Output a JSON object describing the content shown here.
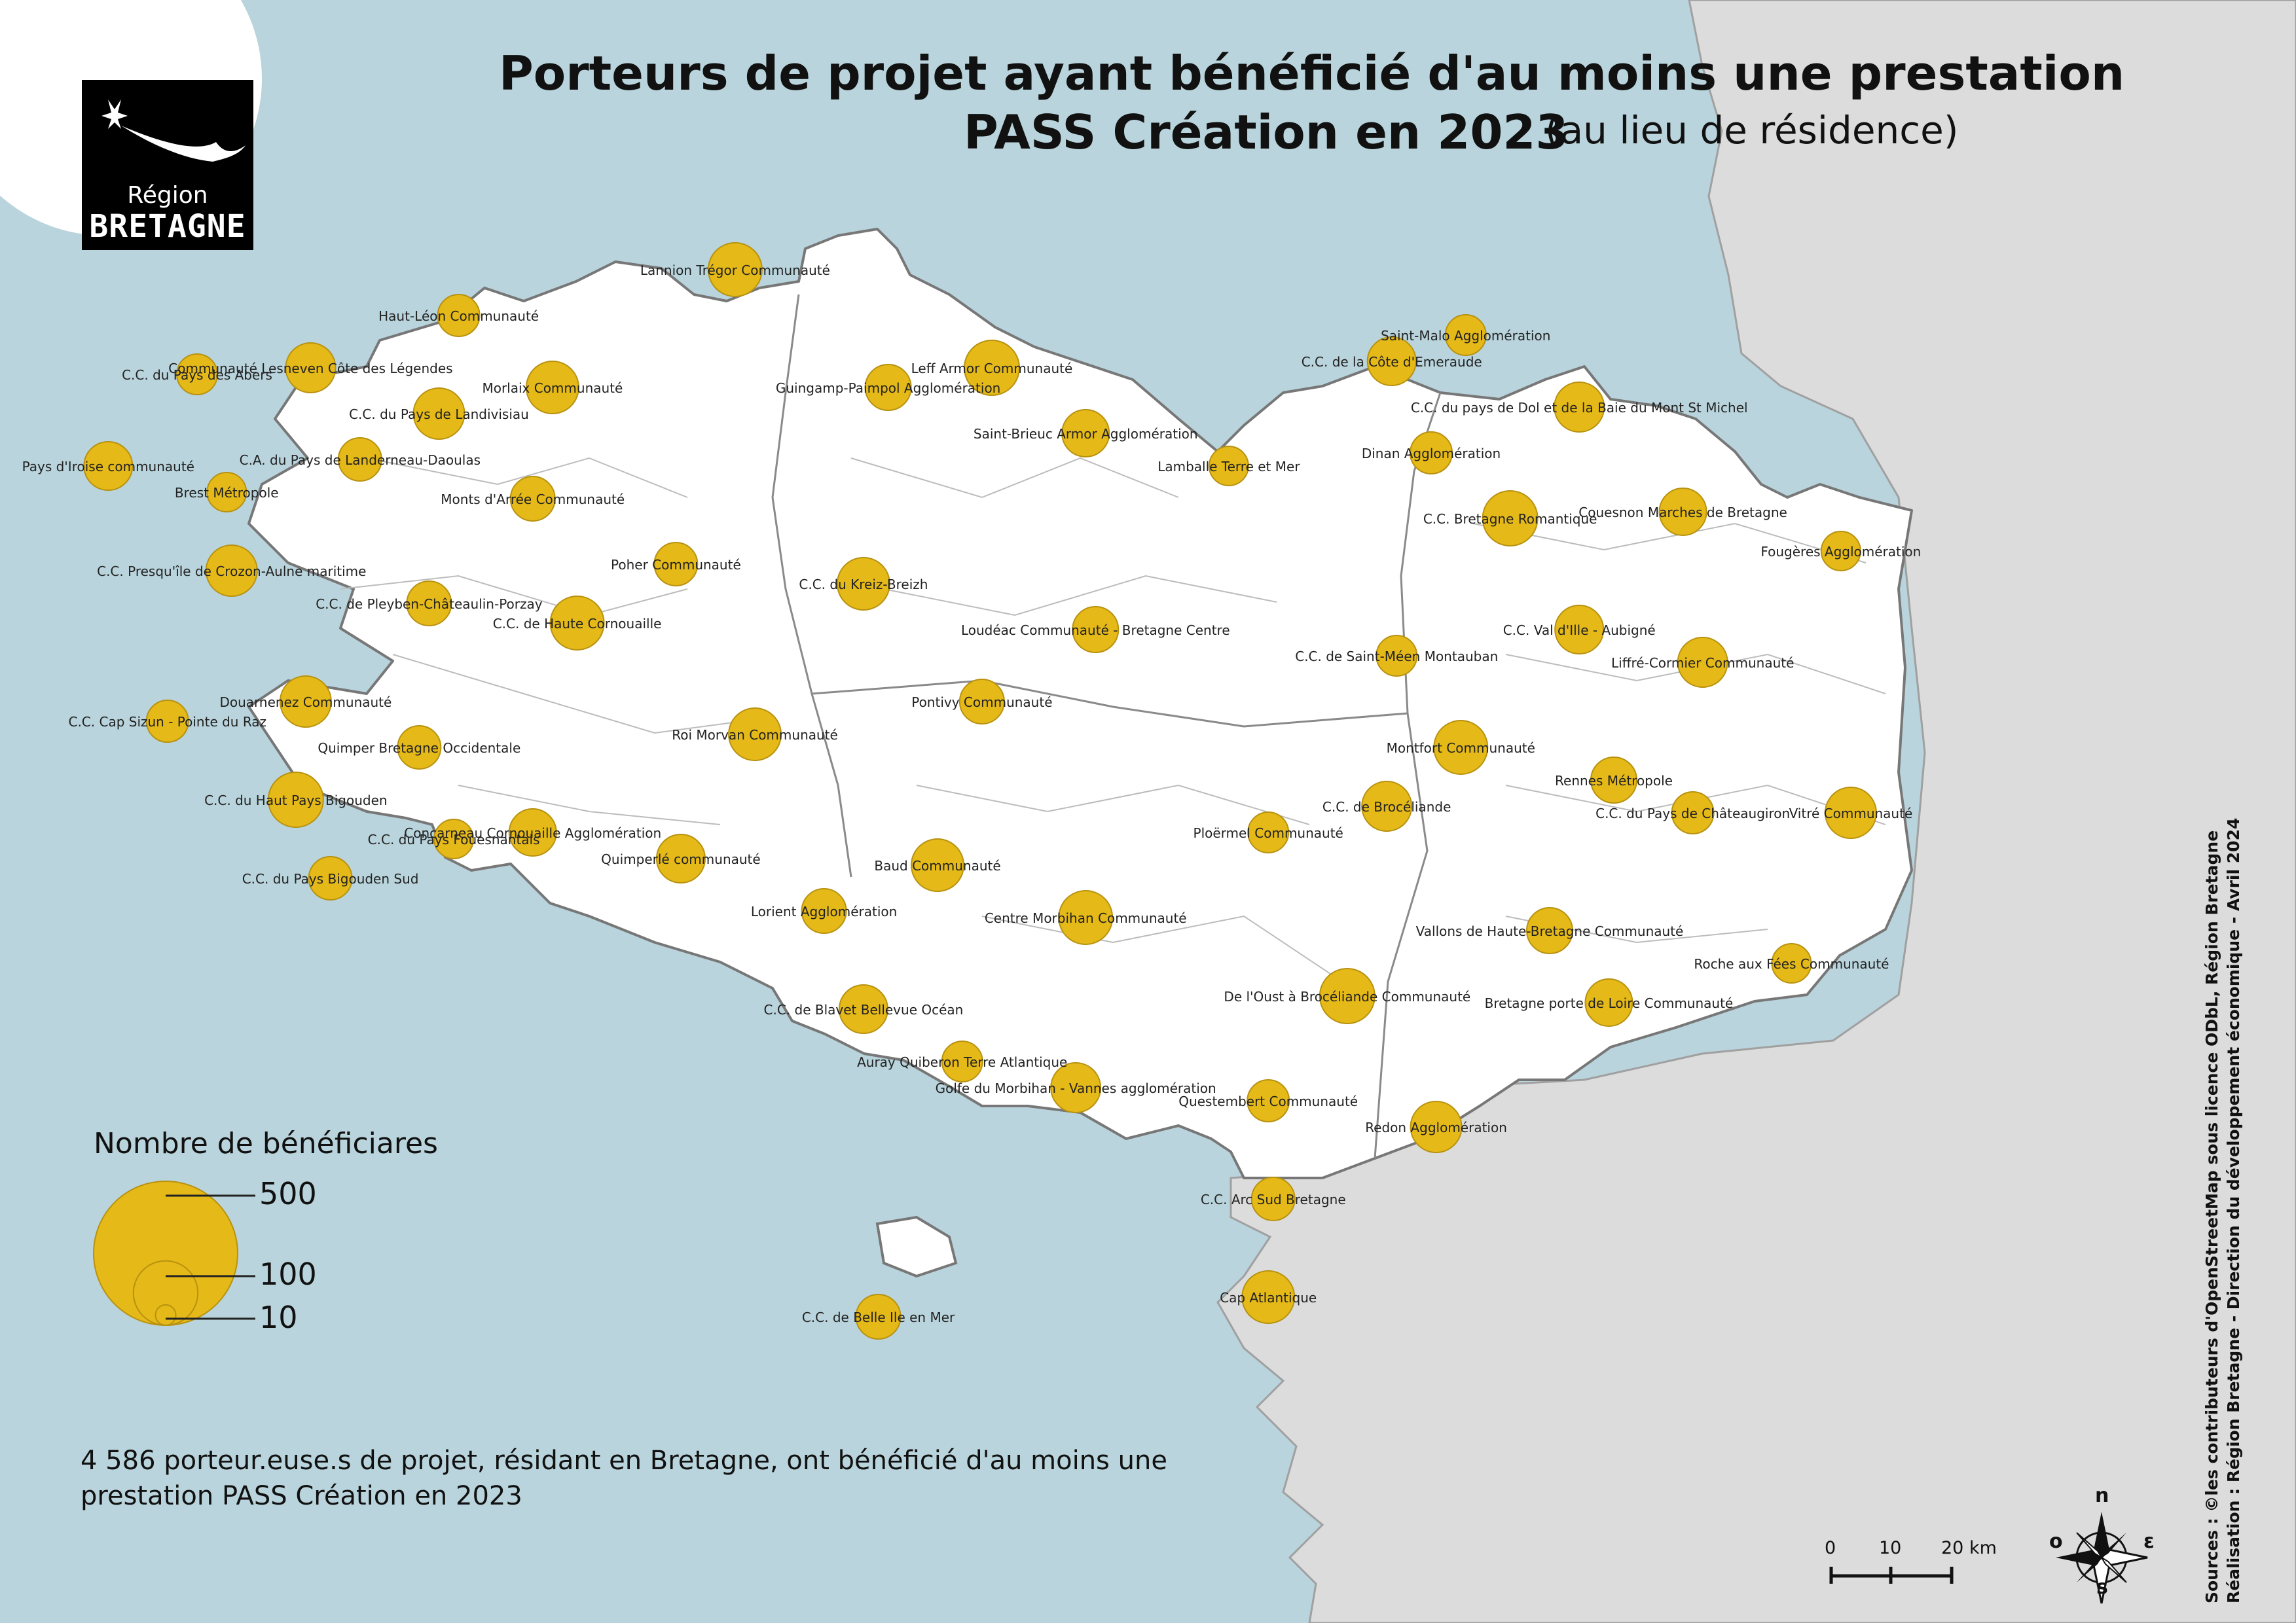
{
  "title": {
    "line1": "Porteurs de projet ayant bénéficié d'au moins une prestation",
    "line2": "PASS Création en 2023",
    "subtitle": "(au lieu de résidence)"
  },
  "logo": {
    "region": "Région",
    "name": "BRETAGNE"
  },
  "legend": {
    "title": "Nombre de bénéficiares",
    "levels": [
      {
        "label": "500",
        "value": 500
      },
      {
        "label": "100",
        "value": 100
      },
      {
        "label": "10",
        "value": 10
      }
    ]
  },
  "summary": "4 586 porteur.euse.s de projet, résidant en Bretagne, ont bénéficié d'au moins une prestation PASS Création en 2023",
  "sources": {
    "line1": "Sources : ©les contributeurs d'OpenStreetMap sous licence ODbL, Région Bretagne",
    "line2": "Réalisation : Région Bretagne - Direction du développement économique - Avril 2024"
  },
  "scale_bar": {
    "ticks": [
      "0",
      "10",
      "20 km"
    ]
  },
  "compass": {
    "n": "n",
    "s": "s",
    "e": "ε",
    "o": "o"
  },
  "colors": {
    "sea": "#b9d4dc",
    "land": "#ffffff",
    "neighbour": "#dcdcdc",
    "symbol": "#e5b918",
    "symbol_stroke": "#b8920f"
  },
  "places": [
    {
      "name": "Brest Métropole",
      "lon": -4.49,
      "lat": 48.39
    },
    {
      "name": "Pays d'Iroise communauté",
      "lon": -4.73,
      "lat": 48.43
    },
    {
      "name": "C.C. du Pays des Abers",
      "lon": -4.55,
      "lat": 48.57
    },
    {
      "name": "Communauté Lesneven Côte des Légendes",
      "lon": -4.32,
      "lat": 48.58
    },
    {
      "name": "Haut-Léon Communauté",
      "lon": -4.02,
      "lat": 48.66
    },
    {
      "name": "C.C. du Pays de Landivisiau",
      "lon": -4.06,
      "lat": 48.51
    },
    {
      "name": "C.A. du Pays de Landerneau-Daoulas",
      "lon": -4.22,
      "lat": 48.44
    },
    {
      "name": "Morlaix Communauté",
      "lon": -3.83,
      "lat": 48.55
    },
    {
      "name": "Monts d'Arrée Communauté",
      "lon": -3.87,
      "lat": 48.38
    },
    {
      "name": "Lannion Trégor Communauté",
      "lon": -3.46,
      "lat": 48.73
    },
    {
      "name": "Guingamp-Paimpol Agglomération",
      "lon": -3.15,
      "lat": 48.55
    },
    {
      "name": "Leff Armor Communauté",
      "lon": -2.94,
      "lat": 48.58
    },
    {
      "name": "Saint-Brieuc Armor Agglomération",
      "lon": -2.75,
      "lat": 48.48
    },
    {
      "name": "Lamballe Terre et Mer",
      "lon": -2.46,
      "lat": 48.43
    },
    {
      "name": "C.C. de la Côte d'Emeraude",
      "lon": -2.13,
      "lat": 48.59
    },
    {
      "name": "Saint-Malo Agglomération",
      "lon": -1.98,
      "lat": 48.63
    },
    {
      "name": "C.C. du pays de Dol et de la Baie du Mont St Michel",
      "lon": -1.75,
      "lat": 48.52
    },
    {
      "name": "Dinan Agglomération",
      "lon": -2.05,
      "lat": 48.45
    },
    {
      "name": "C.C. Presqu'île de Crozon-Aulne maritime",
      "lon": -4.48,
      "lat": 48.27
    },
    {
      "name": "Poher Communauté",
      "lon": -3.58,
      "lat": 48.28
    },
    {
      "name": "C.C. du Kreiz-Breizh",
      "lon": -3.2,
      "lat": 48.25
    },
    {
      "name": "C.C. de Pleyben-Châteaulin-Porzay",
      "lon": -4.08,
      "lat": 48.22
    },
    {
      "name": "C.C. de Haute Cornouaille",
      "lon": -3.78,
      "lat": 48.19
    },
    {
      "name": "Loudéac Communauté - Bretagne Centre",
      "lon": -2.73,
      "lat": 48.18
    },
    {
      "name": "C.C. Bretagne Romantique",
      "lon": -1.89,
      "lat": 48.35
    },
    {
      "name": "Couesnon Marches de Bretagne",
      "lon": -1.54,
      "lat": 48.36
    },
    {
      "name": "Fougères Agglomération",
      "lon": -1.22,
      "lat": 48.3
    },
    {
      "name": "C.C. Val d'Ille - Aubigné",
      "lon": -1.75,
      "lat": 48.18
    },
    {
      "name": "C.C. de Saint-Méen Montauban",
      "lon": -2.12,
      "lat": 48.14
    },
    {
      "name": "Liffré-Cormier Communauté",
      "lon": -1.5,
      "lat": 48.13
    },
    {
      "name": "C.C. Cap Sizun - Pointe du Raz",
      "lon": -4.61,
      "lat": 48.04
    },
    {
      "name": "Douarnenez Communauté",
      "lon": -4.33,
      "lat": 48.07
    },
    {
      "name": "Quimper Bretagne Occidentale",
      "lon": -4.1,
      "lat": 48.0
    },
    {
      "name": "Roi Morvan Communauté",
      "lon": -3.42,
      "lat": 48.02
    },
    {
      "name": "Pontivy Communauté",
      "lon": -2.96,
      "lat": 48.07
    },
    {
      "name": "Montfort Communauté",
      "lon": -1.99,
      "lat": 48.0
    },
    {
      "name": "Rennes Métropole",
      "lon": -1.68,
      "lat": 47.95
    },
    {
      "name": "C.C. du Haut Pays Bigouden",
      "lon": -4.35,
      "lat": 47.92
    },
    {
      "name": "Concarneau Cornouaille Agglomération",
      "lon": -3.87,
      "lat": 47.87
    },
    {
      "name": "C.C. du Pays Fouesnantais",
      "lon": -4.03,
      "lat": 47.86
    },
    {
      "name": "Quimperlé communauté",
      "lon": -3.57,
      "lat": 47.83
    },
    {
      "name": "Ploërmel Communauté",
      "lon": -2.38,
      "lat": 47.87
    },
    {
      "name": "C.C. de Brocéliande",
      "lon": -2.14,
      "lat": 47.91
    },
    {
      "name": "C.C. du Pays de Châteaugiron",
      "lon": -1.52,
      "lat": 47.9
    },
    {
      "name": "Vitré Communauté",
      "lon": -1.2,
      "lat": 47.9
    },
    {
      "name": "C.C. du Pays Bigouden Sud",
      "lon": -4.28,
      "lat": 47.8
    },
    {
      "name": "Baud Communauté",
      "lon": -3.05,
      "lat": 47.82
    },
    {
      "name": "Lorient Agglomération",
      "lon": -3.28,
      "lat": 47.75
    },
    {
      "name": "Centre Morbihan Communauté",
      "lon": -2.75,
      "lat": 47.74
    },
    {
      "name": "Vallons de Haute-Bretagne Communauté",
      "lon": -1.81,
      "lat": 47.72
    },
    {
      "name": "De l'Oust à Brocéliande Communauté",
      "lon": -2.22,
      "lat": 47.62
    },
    {
      "name": "Bretagne porte de Loire Communauté",
      "lon": -1.69,
      "lat": 47.61
    },
    {
      "name": "Roche aux Fées Communauté",
      "lon": -1.32,
      "lat": 47.67
    },
    {
      "name": "C.C. de Blavet Bellevue Océan",
      "lon": -3.2,
      "lat": 47.6
    },
    {
      "name": "Auray Quiberon Terre Atlantique",
      "lon": -3.0,
      "lat": 47.52
    },
    {
      "name": "Golfe du Morbihan - Vannes agglomération",
      "lon": -2.77,
      "lat": 47.48
    },
    {
      "name": "Questembert Communauté",
      "lon": -2.38,
      "lat": 47.46
    },
    {
      "name": "Redon Agglomération",
      "lon": -2.04,
      "lat": 47.42
    },
    {
      "name": "C.C. Arc Sud Bretagne",
      "lon": -2.37,
      "lat": 47.31
    },
    {
      "name": "Cap Atlantique",
      "lon": -2.38,
      "lat": 47.16
    },
    {
      "name": "C.C. de Belle Ile en Mer",
      "lon": -3.17,
      "lat": 47.13
    }
  ]
}
